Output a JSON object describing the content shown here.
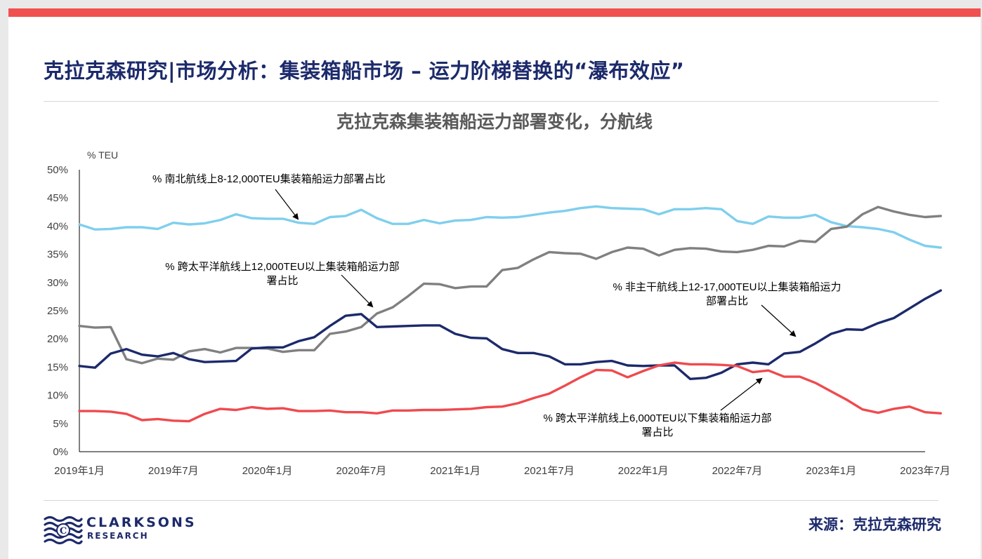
{
  "page": {
    "title": "克拉克森研究|市场分析：集装箱船市场 – 运力阶梯替换的“瀑布效应”",
    "source": "来源：克拉克森研究"
  },
  "logo": {
    "name": "CLARKSONS",
    "sub": "RESEARCH"
  },
  "colors": {
    "accent_bar": "#f0504f",
    "title_navy": "#1c2a6b",
    "series_light_blue": "#7fcfed",
    "series_grey": "#808080",
    "series_navy": "#1c2a6b",
    "series_red": "#ef4a4e"
  },
  "chart_data": {
    "type": "line",
    "title": "克拉克森集装箱船运力部署变化，分航线",
    "ylabel": "% TEU",
    "ylim": [
      0,
      50
    ],
    "yticks": [
      "0%",
      "5%",
      "10%",
      "15%",
      "20%",
      "25%",
      "30%",
      "35%",
      "40%",
      "45%",
      "50%"
    ],
    "xlim": [
      0,
      54
    ],
    "xticks": [
      {
        "pos": 0,
        "label": "2019年1月"
      },
      {
        "pos": 6,
        "label": "2019年7月"
      },
      {
        "pos": 12,
        "label": "2020年1月"
      },
      {
        "pos": 18,
        "label": "2020年7月"
      },
      {
        "pos": 24,
        "label": "2021年1月"
      },
      {
        "pos": 30,
        "label": "2021年7月"
      },
      {
        "pos": 36,
        "label": "2022年1月"
      },
      {
        "pos": 42,
        "label": "2022年7月"
      },
      {
        "pos": 48,
        "label": "2023年1月"
      },
      {
        "pos": 54,
        "label": "2023年7月"
      }
    ],
    "grid": false,
    "series": [
      {
        "name": "% 南北航线上8-12,000TEU集装箱船运力部署占比",
        "color": "#7fcfed",
        "values": [
          40.3,
          39.4,
          39.5,
          39.8,
          39.8,
          39.5,
          40.6,
          40.3,
          40.5,
          41.1,
          42.1,
          41.4,
          41.3,
          41.3,
          40.6,
          40.4,
          41.6,
          41.8,
          42.9,
          41.4,
          40.4,
          40.4,
          41.1,
          40.5,
          41.0,
          41.1,
          41.6,
          41.5,
          41.6,
          42.0,
          42.4,
          42.7,
          43.2,
          43.5,
          43.2,
          43.1,
          43.0,
          42.1,
          43.0,
          43.0,
          43.2,
          43.0,
          40.9,
          40.4,
          41.7,
          41.5,
          41.5,
          42.0,
          40.7,
          40.0,
          39.8,
          39.5,
          38.9,
          37.6,
          36.5,
          36.2
        ]
      },
      {
        "name": "% 跨太平洋航线上12,000TEU以上集装箱船运力部署占比",
        "color": "#808080",
        "values": [
          22.3,
          22.0,
          22.1,
          16.4,
          15.7,
          16.5,
          16.3,
          17.8,
          18.2,
          17.6,
          18.4,
          18.4,
          18.3,
          17.7,
          18.0,
          18.0,
          20.9,
          21.3,
          22.1,
          24.5,
          25.6,
          27.6,
          29.8,
          29.7,
          29.0,
          29.3,
          29.3,
          32.2,
          32.6,
          34.1,
          35.4,
          35.2,
          35.1,
          34.2,
          35.4,
          36.2,
          36.0,
          34.8,
          35.8,
          36.1,
          36.0,
          35.5,
          35.4,
          35.8,
          36.5,
          36.4,
          37.4,
          37.2,
          39.5,
          39.9,
          42.1,
          43.4,
          42.6,
          42.0,
          41.6,
          41.8
        ]
      },
      {
        "name": "% 非主干航线上12-17,000TEU以上集装箱船运力部署占比",
        "color": "#1c2a6b",
        "values": [
          15.2,
          14.9,
          17.4,
          18.2,
          17.2,
          16.9,
          17.5,
          16.4,
          15.9,
          16.0,
          16.1,
          18.3,
          18.5,
          18.5,
          19.6,
          20.3,
          22.3,
          24.1,
          24.4,
          22.1,
          22.2,
          22.3,
          22.4,
          22.4,
          20.9,
          20.2,
          20.1,
          18.2,
          17.5,
          17.5,
          16.9,
          15.5,
          15.5,
          15.9,
          16.1,
          15.3,
          15.2,
          15.3,
          15.3,
          12.9,
          13.1,
          14.0,
          15.5,
          15.8,
          15.5,
          17.4,
          17.7,
          19.2,
          20.9,
          21.7,
          21.6,
          22.8,
          23.7,
          25.4,
          27.1,
          28.6
        ]
      },
      {
        "name": "% 跨太平洋航线上6,000TEU以下集装箱船运力部署占比",
        "color": "#ef4a4e",
        "values": [
          7.2,
          7.2,
          7.1,
          6.7,
          5.6,
          5.8,
          5.5,
          5.4,
          6.7,
          7.6,
          7.4,
          7.9,
          7.6,
          7.7,
          7.2,
          7.2,
          7.3,
          7.0,
          7.0,
          6.8,
          7.3,
          7.3,
          7.4,
          7.4,
          7.5,
          7.6,
          7.9,
          8.0,
          8.6,
          9.5,
          10.3,
          11.7,
          13.2,
          14.5,
          14.4,
          13.2,
          14.3,
          15.3,
          15.8,
          15.5,
          15.5,
          15.4,
          15.2,
          14.1,
          14.4,
          13.3,
          13.3,
          12.2,
          10.7,
          9.2,
          7.5,
          6.9,
          7.6,
          8.0,
          7.0,
          6.8
        ]
      }
    ],
    "annotations": [
      {
        "text": "% 南北航线上8-12,000TEU集装箱船运力部署占比",
        "series": 0
      },
      {
        "text": "% 跨太平洋航线上12,000TEU以上集装箱船运力部\n署占比",
        "series": 1
      },
      {
        "text": "% 非主干航线上12-17,000TEU以上集装箱船运力\n部署占比",
        "series": 2
      },
      {
        "text": "% 跨太平洋航线上6,000TEU以下集装箱船运力部\n署占比",
        "series": 3
      }
    ]
  }
}
